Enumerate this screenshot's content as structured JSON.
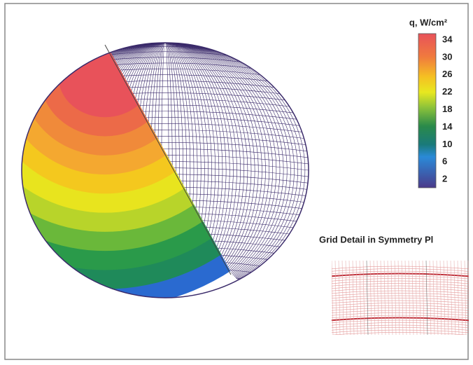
{
  "colorbar": {
    "label": "q, W/cm²",
    "ticks": [
      "34",
      "30",
      "26",
      "22",
      "18",
      "14",
      "10",
      "6",
      "2"
    ]
  },
  "inset": {
    "title": "Grid Detail in Symmetry Pl"
  }
}
